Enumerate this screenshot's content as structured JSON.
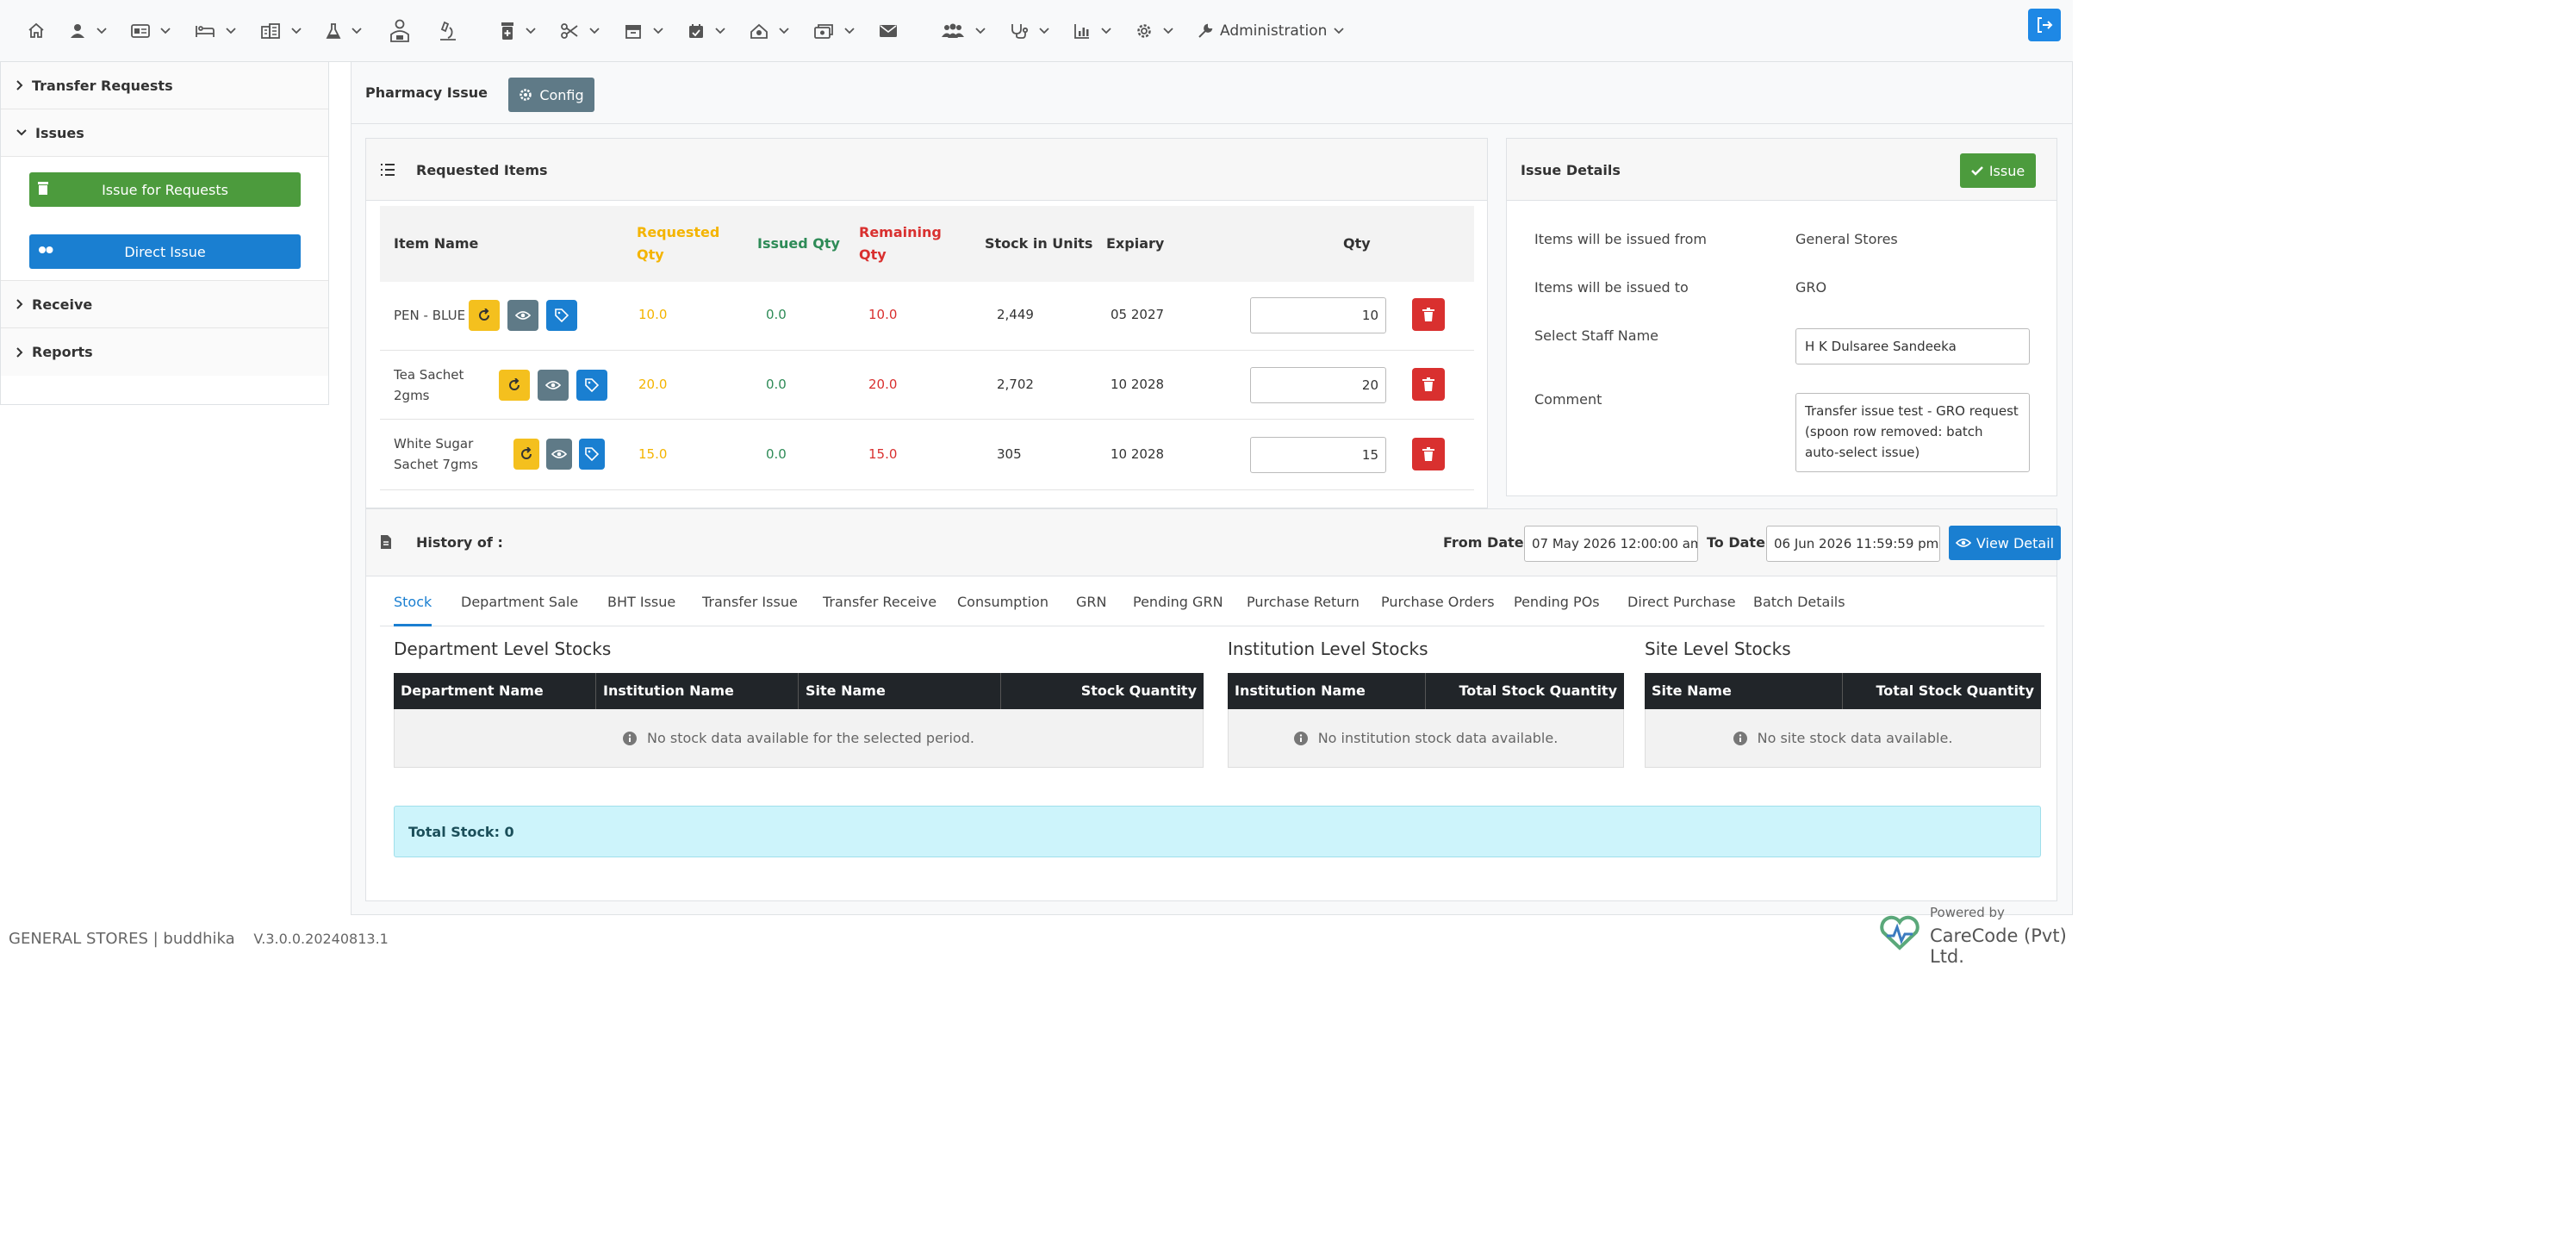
{
  "navbar": {
    "items": [
      {
        "icon": "home-icon",
        "caret": false
      },
      {
        "icon": "user-icon",
        "caret": true
      },
      {
        "icon": "id-card-icon",
        "caret": true
      },
      {
        "icon": "bed-icon",
        "caret": true
      },
      {
        "icon": "building-icon",
        "caret": true
      },
      {
        "icon": "flask-icon",
        "caret": true
      },
      {
        "icon": "doctor-icon",
        "caret": false
      },
      {
        "icon": "microscope-icon",
        "caret": false
      },
      {
        "icon": "pharmacy-icon",
        "caret": true
      },
      {
        "icon": "scissors-icon",
        "caret": true
      },
      {
        "icon": "store-icon",
        "caret": true
      },
      {
        "icon": "calendar-icon",
        "caret": true
      },
      {
        "icon": "hand-holding-icon",
        "caret": true
      },
      {
        "icon": "money-icon",
        "caret": true
      },
      {
        "icon": "envelope-icon",
        "caret": false
      },
      {
        "icon": "users-icon",
        "caret": true
      },
      {
        "icon": "stethoscope-icon",
        "caret": true
      },
      {
        "icon": "chart-icon",
        "caret": true
      },
      {
        "icon": "gear-icon",
        "caret": true
      }
    ],
    "administration_label": "Administration"
  },
  "sidebar": {
    "sections": [
      "Transfer Requests",
      "Issues",
      "Receive",
      "Reports"
    ],
    "issue_requests_label": "Issue for Requests",
    "direct_issue_label": "Direct Issue"
  },
  "page": {
    "title": "Pharmacy Issue",
    "config_label": "Config"
  },
  "requested_items": {
    "title": "Requested Items",
    "columns": {
      "item_name": "Item Name",
      "requested_qty": "Requested Qty",
      "issued_qty": "Issued Qty",
      "remaining_qty": "Remaining Qty",
      "stock_units": "Stock in Units",
      "expiry": "Expiary",
      "qty": "Qty"
    },
    "rows": [
      {
        "name": "PEN - BLUE",
        "requested": "10.0",
        "issued": "0.0",
        "remaining": "10.0",
        "stock": "2,449",
        "expiry": "05 2027",
        "qty": "10"
      },
      {
        "name": "Tea Sachet 2gms",
        "requested": "20.0",
        "issued": "0.0",
        "remaining": "20.0",
        "stock": "2,702",
        "expiry": "10 2028",
        "qty": "20"
      },
      {
        "name": "White Sugar Sachet 7gms",
        "requested": "15.0",
        "issued": "0.0",
        "remaining": "15.0",
        "stock": "305",
        "expiry": "10 2028",
        "qty": "15"
      }
    ]
  },
  "issue_details": {
    "title": "Issue Details",
    "issue_button": "Issue",
    "from_label": "Items will be issued from",
    "from_value": "General Stores",
    "to_label": "Items will be issued to",
    "to_value": "GRO",
    "staff_label": "Select Staff Name",
    "staff_value": "H K Dulsaree Sandeeka",
    "comment_label": "Comment",
    "comment_value": "Transfer issue test - GRO request (spoon row removed: batch auto-select issue)"
  },
  "history": {
    "title": "History of :",
    "from_date_label": "From Date",
    "from_date_value": "07 May 2026 12:00:00 am",
    "to_date_label": "To Date",
    "to_date_value": "06 Jun 2026 11:59:59 pm",
    "view_detail_label": "View Detail",
    "tabs": [
      "Stock",
      "Department Sale",
      "BHT Issue",
      "Transfer Issue",
      "Transfer Receive",
      "Consumption",
      "GRN",
      "Pending GRN",
      "Purchase Return",
      "Purchase Orders",
      "Pending POs",
      "Direct Purchase",
      "Batch Details"
    ],
    "active_tab": "Stock",
    "department": {
      "title": "Department Level Stocks",
      "columns": [
        "Department Name",
        "Institution Name",
        "Site Name",
        "Stock Quantity"
      ],
      "empty": "No stock data available for the selected period."
    },
    "institution": {
      "title": "Institution Level Stocks",
      "columns": [
        "Institution Name",
        "Total Stock Quantity"
      ],
      "empty": "No institution stock data available."
    },
    "site": {
      "title": "Site Level Stocks",
      "columns": [
        "Site Name",
        "Total Stock Quantity"
      ],
      "empty": "No site stock data available."
    },
    "total_stock": "Total Stock: 0"
  },
  "footer": {
    "dept": "GENERAL STORES | buddhika",
    "version": "V.3.0.0.20240813.1",
    "powered_by": "Powered by",
    "company": "CareCode (Pvt) Ltd."
  }
}
